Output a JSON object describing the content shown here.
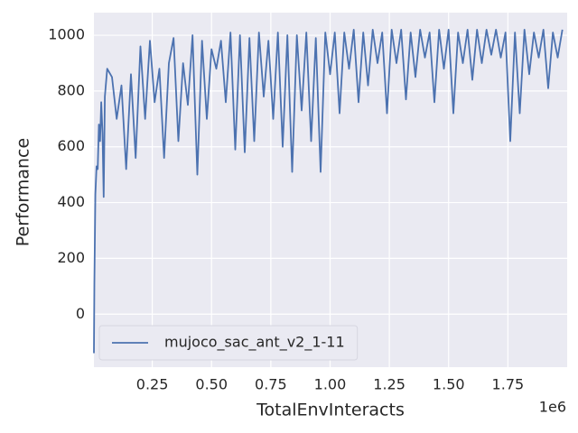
{
  "chart_data": {
    "type": "line",
    "xlabel": "TotalEnvInteracts",
    "ylabel": "Performance",
    "x_offset_label": "1e6",
    "legend": "lower left",
    "grid": true,
    "xlim": [
      4000,
      2000000
    ],
    "ylim": [
      -190,
      1081
    ],
    "xticks": [
      {
        "value": 250000,
        "label": "0.25"
      },
      {
        "value": 500000,
        "label": "0.50"
      },
      {
        "value": 750000,
        "label": "0.75"
      },
      {
        "value": 1000000,
        "label": "1.00"
      },
      {
        "value": 1250000,
        "label": "1.25"
      },
      {
        "value": 1500000,
        "label": "1.50"
      },
      {
        "value": 1750000,
        "label": "1.75"
      }
    ],
    "yticks": [
      0,
      200,
      400,
      600,
      800,
      1000
    ],
    "x": [
      4000,
      6000,
      10000,
      15000,
      20000,
      25000,
      30000,
      35000,
      40000,
      45000,
      50000,
      60000,
      80000,
      100000,
      120000,
      140000,
      160000,
      180000,
      200000,
      220000,
      240000,
      260000,
      280000,
      300000,
      320000,
      340000,
      360000,
      380000,
      400000,
      420000,
      440000,
      460000,
      480000,
      500000,
      520000,
      540000,
      560000,
      580000,
      600000,
      620000,
      640000,
      660000,
      680000,
      700000,
      720000,
      740000,
      760000,
      780000,
      800000,
      820000,
      840000,
      860000,
      880000,
      900000,
      920000,
      940000,
      960000,
      980000,
      1000000,
      1020000,
      1040000,
      1060000,
      1080000,
      1100000,
      1120000,
      1140000,
      1160000,
      1180000,
      1200000,
      1220000,
      1240000,
      1260000,
      1280000,
      1300000,
      1320000,
      1340000,
      1360000,
      1380000,
      1400000,
      1420000,
      1440000,
      1460000,
      1480000,
      1500000,
      1520000,
      1540000,
      1560000,
      1580000,
      1600000,
      1620000,
      1640000,
      1660000,
      1680000,
      1700000,
      1720000,
      1740000,
      1760000,
      1780000,
      1800000,
      1820000,
      1840000,
      1860000,
      1880000,
      1900000,
      1920000,
      1940000,
      1960000,
      1980000
    ],
    "series": [
      {
        "name": "mujoco_sac_ant_v2_1-11",
        "color": "#4c72b0",
        "values": [
          -140,
          110,
          430,
          530,
          520,
          680,
          620,
          760,
          650,
          420,
          780,
          880,
          850,
          700,
          820,
          520,
          860,
          560,
          960,
          700,
          980,
          760,
          880,
          560,
          900,
          990,
          620,
          900,
          750,
          1000,
          500,
          980,
          700,
          950,
          880,
          980,
          760,
          1010,
          590,
          1000,
          580,
          990,
          620,
          1010,
          780,
          980,
          700,
          1010,
          600,
          1000,
          510,
          1000,
          730,
          1010,
          620,
          990,
          510,
          1010,
          860,
          1010,
          720,
          1010,
          880,
          1020,
          760,
          1010,
          820,
          1020,
          900,
          1010,
          720,
          1020,
          900,
          1020,
          770,
          1010,
          850,
          1020,
          920,
          1010,
          760,
          1020,
          880,
          1020,
          720,
          1010,
          900,
          1020,
          840,
          1020,
          900,
          1020,
          930,
          1020,
          920,
          1010,
          620,
          1010,
          720,
          1020,
          860,
          1010,
          920,
          1020,
          810,
          1010,
          920,
          1020
        ]
      }
    ]
  }
}
